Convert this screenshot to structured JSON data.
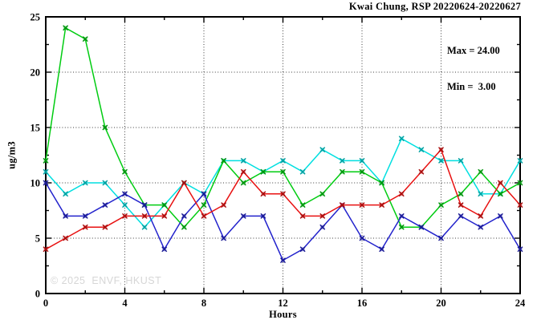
{
  "title": "Kwai Chung, RSP 20220624-20220627",
  "stats": {
    "max_label": "Max = 24.00",
    "min_label": "Min =  3.00"
  },
  "watermark": "© 2025  ENVF, HKUST",
  "axes": {
    "x_label": "Hours",
    "y_label": "ug/m3"
  },
  "chart_data": {
    "type": "line",
    "title": "Kwai Chung, RSP 20220624-20220627",
    "xlabel": "Hours",
    "ylabel": "ug/m3",
    "xlim": [
      0,
      24
    ],
    "ylim": [
      0,
      25
    ],
    "grid": true,
    "legend_position": "none",
    "grid_x": [
      4,
      8,
      12,
      16,
      20
    ],
    "grid_y": [
      5,
      10,
      15,
      20
    ],
    "x_major_ticks": [
      0,
      4,
      8,
      12,
      16,
      20,
      24
    ],
    "x_tick_labels": [
      "0",
      "4",
      "8",
      "12",
      "16",
      "20",
      "24"
    ],
    "x_minor_step": 2,
    "y_major_ticks": [
      0,
      5,
      10,
      15,
      20,
      25
    ],
    "y_tick_labels": [
      "0",
      "5",
      "10",
      "15",
      "20",
      "25"
    ],
    "y_minor_step": 2.5,
    "stats_shown": {
      "max": 24.0,
      "min": 3.0
    },
    "x": [
      0,
      1,
      2,
      3,
      4,
      5,
      6,
      7,
      8,
      9,
      10,
      11,
      12,
      13,
      14,
      15,
      16,
      17,
      18,
      19,
      20,
      21,
      22,
      23,
      24
    ],
    "series": [
      {
        "name": "cyan-line",
        "color": "#00dfe0",
        "values": [
          11,
          9,
          10,
          10,
          8,
          6,
          8,
          10,
          9,
          12,
          12,
          11,
          12,
          11,
          13,
          12,
          12,
          10,
          14,
          13,
          12,
          12,
          9,
          9,
          12
        ]
      },
      {
        "name": "green-line",
        "color": "#00cc11",
        "values": [
          12,
          24,
          23,
          15,
          11,
          8,
          8,
          6,
          8,
          12,
          10,
          11,
          11,
          8,
          9,
          11,
          11,
          10,
          6,
          6,
          8,
          9,
          11,
          9,
          10
        ]
      },
      {
        "name": "blue-line",
        "color": "#2222cc",
        "values": [
          10,
          7,
          7,
          8,
          9,
          8,
          4,
          7,
          9,
          5,
          7,
          7,
          3,
          4,
          6,
          8,
          5,
          4,
          7,
          6,
          5,
          7,
          6,
          7,
          4
        ]
      },
      {
        "name": "red-line",
        "color": "#e81111",
        "values": [
          4,
          5,
          6,
          6,
          7,
          7,
          7,
          10,
          7,
          8,
          11,
          9,
          9,
          7,
          7,
          8,
          8,
          8,
          9,
          11,
          13,
          8,
          7,
          10,
          8
        ]
      }
    ]
  }
}
